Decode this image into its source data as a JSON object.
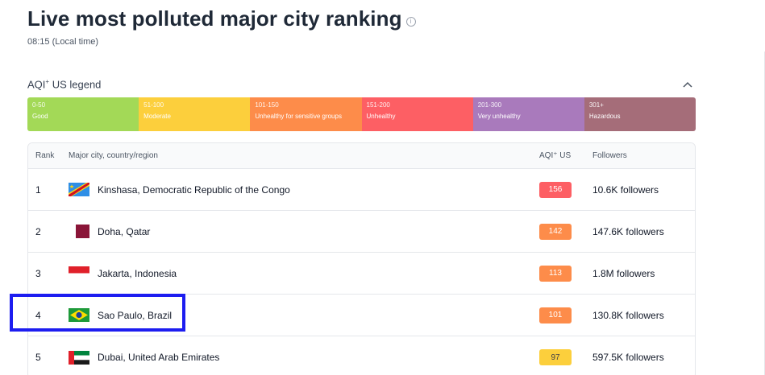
{
  "header": {
    "title": "Live most polluted major city ranking",
    "info_icon": "info-icon",
    "local_time": "08:15 (Local time)"
  },
  "legend": {
    "title": "AQI",
    "title_sup": "+",
    "title_suffix": " US legend",
    "collapse_icon": "chevron-up-icon",
    "segments": [
      {
        "range": "0-50",
        "label": "Good",
        "color": "#a3d957"
      },
      {
        "range": "51-100",
        "label": "Moderate",
        "color": "#fccf3c"
      },
      {
        "range": "101-150",
        "label": "Unhealthy for sensitive groups",
        "color": "#fd8c4a"
      },
      {
        "range": "151-200",
        "label": "Unhealthy",
        "color": "#fd5f64"
      },
      {
        "range": "201-300",
        "label": "Very unhealthy",
        "color": "#a97abc"
      },
      {
        "range": "301+",
        "label": "Hazardous",
        "color": "#a56d79"
      }
    ]
  },
  "table": {
    "headers": {
      "rank": "Rank",
      "city": "Major city, country/region",
      "aqi": "AQI⁺ US",
      "followers": "Followers"
    },
    "rows": [
      {
        "rank": "1",
        "city": "Kinshasa, Democratic Republic of the Congo",
        "flag": "drc-flag-icon",
        "aqi": "156",
        "aqi_color": "#fd5f64",
        "followers": "10.6K followers"
      },
      {
        "rank": "2",
        "city": "Doha, Qatar",
        "flag": "qatar-flag-icon",
        "aqi": "142",
        "aqi_color": "#fd8c4a",
        "followers": "147.6K followers"
      },
      {
        "rank": "3",
        "city": "Jakarta, Indonesia",
        "flag": "indonesia-flag-icon",
        "aqi": "113",
        "aqi_color": "#fd8c4a",
        "followers": "1.8M followers"
      },
      {
        "rank": "4",
        "city": "Sao Paulo, Brazil",
        "flag": "brazil-flag-icon",
        "aqi": "101",
        "aqi_color": "#fd8c4a",
        "followers": "130.8K followers"
      },
      {
        "rank": "5",
        "city": "Dubai, United Arab Emirates",
        "flag": "uae-flag-icon",
        "aqi": "97",
        "aqi_color": "#fccf3c",
        "followers": "597.5K followers"
      }
    ]
  }
}
